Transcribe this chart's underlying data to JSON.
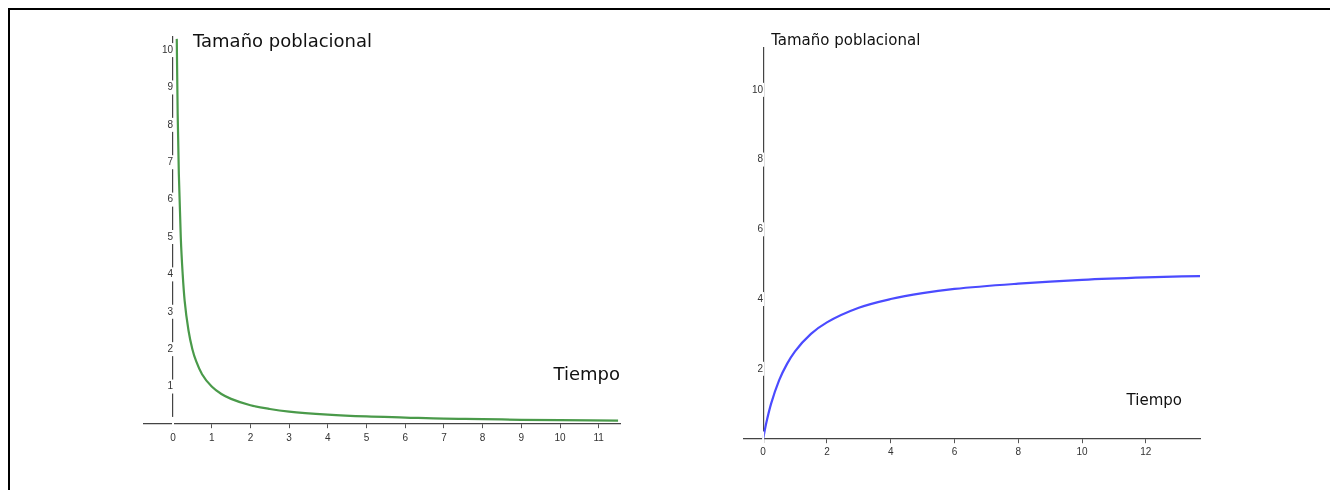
{
  "chart_data": [
    {
      "type": "line",
      "xlabel": "Tiempo",
      "ylabel": "Tamaño poblacional",
      "xlim": [
        -0.75,
        11.55
      ],
      "ylim": [
        -0.35,
        10.35
      ],
      "xticks": [
        0,
        1,
        2,
        3,
        4,
        5,
        6,
        7,
        8,
        9,
        10,
        11
      ],
      "yticks": [
        {
          "value": 0,
          "label": null
        },
        1,
        2,
        3,
        4,
        5,
        6,
        7,
        8,
        9,
        10
      ],
      "grid": false,
      "legend": false,
      "marker": "none",
      "line_style": "solid",
      "series": [
        {
          "color": "#4a9a4a",
          "x": [
            0.097,
            0.1,
            0.12,
            0.15,
            0.2,
            0.25,
            0.3,
            0.4,
            0.5,
            0.6,
            0.75,
            1,
            1.25,
            1.5,
            2,
            2.5,
            3,
            4,
            5,
            6,
            7,
            8,
            9,
            10,
            11.5
          ],
          "values": [
            10.3,
            10,
            8.3,
            6.7,
            5,
            4,
            3.3,
            2.5,
            2,
            1.67,
            1.33,
            1,
            0.8,
            0.67,
            0.5,
            0.4,
            0.33,
            0.25,
            0.2,
            0.17,
            0.14,
            0.13,
            0.11,
            0.1,
            0.09
          ]
        }
      ]
    },
    {
      "type": "line",
      "xlabel": "Tiempo",
      "ylabel": "Tamaño poblacional",
      "xlim": [
        -0.6,
        13.7
      ],
      "ylim": [
        -0.1,
        11.2
      ],
      "xticks": [
        0,
        2,
        4,
        6,
        8,
        10,
        12
      ],
      "yticks": [
        {
          "value": 0,
          "label": null
        },
        2,
        4,
        6,
        8,
        10
      ],
      "grid": false,
      "legend": false,
      "marker": "none",
      "line_style": "solid",
      "series": [
        {
          "color": "#4b4bff",
          "x": [
            0,
            0.1,
            0.25,
            0.5,
            0.75,
            1,
            1.5,
            2,
            3,
            4,
            5,
            6,
            8,
            10,
            12,
            13.7
          ],
          "values": [
            0,
            0.45,
            1,
            1.67,
            2.14,
            2.5,
            3,
            3.33,
            3.75,
            4,
            4.17,
            4.29,
            4.44,
            4.55,
            4.62,
            4.66
          ]
        }
      ]
    }
  ]
}
